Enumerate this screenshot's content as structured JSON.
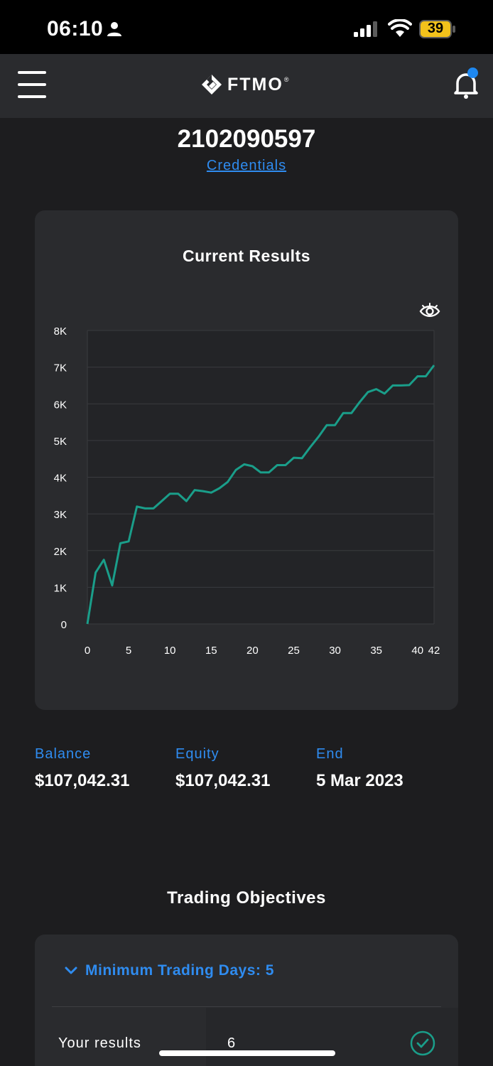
{
  "status_bar": {
    "time": "06:10",
    "battery": "39"
  },
  "header": {
    "logo_text": "FTMO",
    "logo_reg": "®"
  },
  "account": {
    "number": "2102090597",
    "credentials_label": "Credentials"
  },
  "chart_card": {
    "title": "Current Results",
    "chart_data": {
      "type": "line",
      "x": [
        0,
        1,
        2,
        3,
        4,
        5,
        6,
        7,
        8,
        9,
        10,
        11,
        12,
        13,
        14,
        15,
        16,
        17,
        18,
        19,
        20,
        21,
        22,
        23,
        24,
        25,
        26,
        27,
        28,
        29,
        30,
        31,
        32,
        33,
        34,
        35,
        36,
        37,
        38,
        39,
        40,
        41,
        42
      ],
      "series": [
        {
          "values": [
            0,
            1400,
            1750,
            1050,
            2200,
            2250,
            3200,
            3150,
            3150,
            3350,
            3550,
            3550,
            3350,
            3650,
            3620,
            3580,
            3700,
            3870,
            4200,
            4350,
            4300,
            4130,
            4130,
            4330,
            4330,
            4530,
            4520,
            4820,
            5100,
            5420,
            5420,
            5750,
            5750,
            6050,
            6320,
            6400,
            6280,
            6500,
            6500,
            6510,
            6750,
            6750,
            7050
          ]
        }
      ],
      "x_ticks": [
        "0",
        "5",
        "10",
        "15",
        "20",
        "25",
        "30",
        "35",
        "40",
        "42"
      ],
      "y_ticks": [
        "0",
        "1K",
        "2K",
        "3K",
        "4K",
        "5K",
        "6K",
        "7K",
        "8K"
      ],
      "xlim": [
        0,
        42
      ],
      "ylim": [
        0,
        8000
      ],
      "grid": true,
      "line_color": "#1a9e8a"
    }
  },
  "stats": [
    {
      "label": "Balance",
      "value": "$107,042.31"
    },
    {
      "label": "Equity",
      "value": "$107,042.31"
    },
    {
      "label": "End",
      "value": "5 Mar 2023"
    }
  ],
  "objectives": {
    "title": "Trading Objectives",
    "items": [
      {
        "heading": "Minimum Trading Days: 5",
        "row_label": "Your results",
        "row_value": "6",
        "status": "check-circle-icon"
      }
    ]
  },
  "colors": {
    "accent": "#2f8cf0",
    "chart_line": "#1a9e8a",
    "card": "#2a2b2e",
    "background": "#1d1d1f"
  }
}
